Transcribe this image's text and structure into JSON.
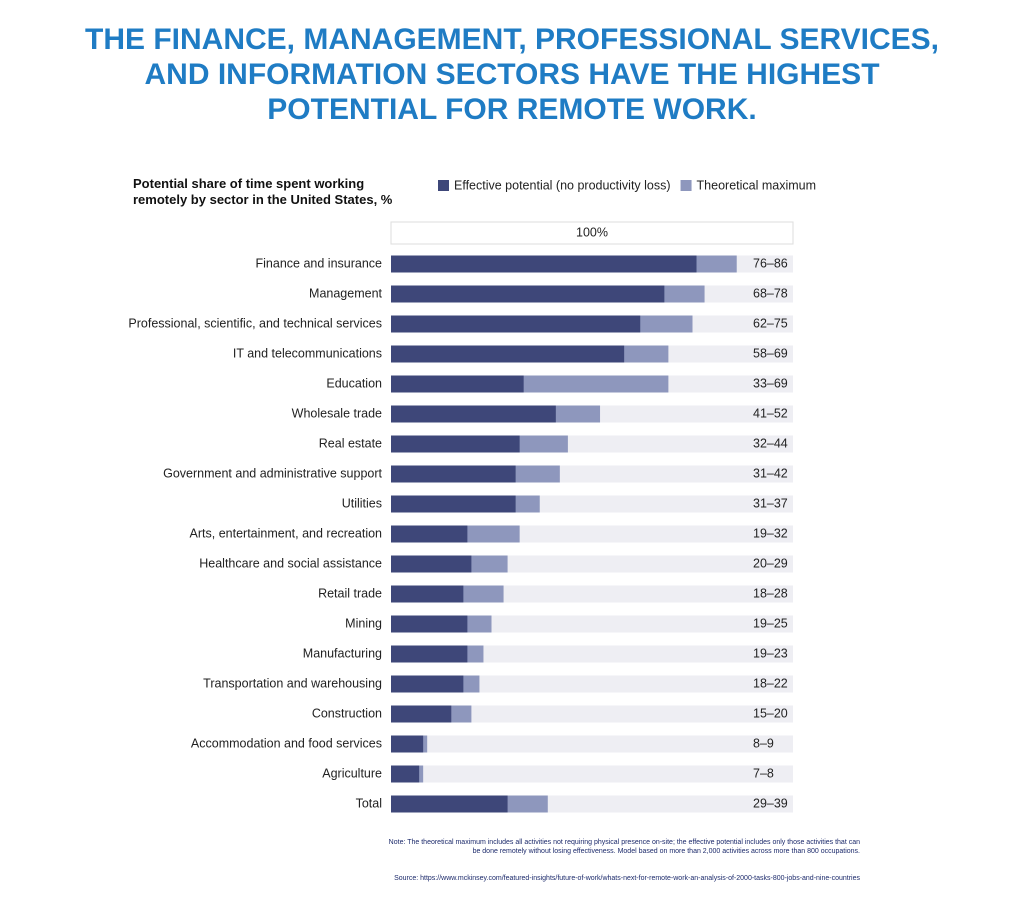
{
  "chart_data": {
    "type": "bar",
    "title": "THE FINANCE, MANAGEMENT, PROFESSIONAL SERVICES, AND INFORMATION SECTORS HAVE THE HIGHEST POTENTIAL FOR REMOTE WORK.",
    "subtitle": "Potential share of time spent working remotely by sector in the United States, %",
    "categories": [
      "Finance and insurance",
      "Management",
      "Professional, scientific, and technical services",
      "IT and telecommunications",
      "Education",
      "Wholesale trade",
      "Real estate",
      "Government and administrative support",
      "Utilities",
      "Arts, entertainment, and recreation",
      "Healthcare and social assistance",
      "Retail trade",
      "Mining",
      "Manufacturing",
      "Transportation and warehousing",
      "Construction",
      "Accommodation and food services",
      "Agriculture",
      "Total"
    ],
    "series": [
      {
        "name": "Effective potential (no productivity loss)",
        "color": "#3e4779",
        "values": [
          76,
          68,
          62,
          58,
          33,
          41,
          32,
          31,
          31,
          19,
          20,
          18,
          19,
          19,
          18,
          15,
          8,
          7,
          29
        ]
      },
      {
        "name": "Theoretical maximum",
        "color": "#8e97bd",
        "values": [
          86,
          78,
          75,
          69,
          69,
          52,
          44,
          42,
          37,
          32,
          29,
          28,
          25,
          23,
          22,
          20,
          9,
          8,
          39
        ]
      }
    ],
    "value_labels": [
      "76–86",
      "68–78",
      "62–75",
      "58–69",
      "33–69",
      "41–52",
      "32–44",
      "31–42",
      "31–37",
      "19–32",
      "20–29",
      "18–28",
      "19–25",
      "19–23",
      "18–22",
      "15–20",
      "8–9",
      "7–8",
      "29–39"
    ],
    "xlim": [
      0,
      100
    ],
    "xticks": [
      {
        "value": 100,
        "label": "100%"
      }
    ],
    "note": "Note: The theoretical maximum includes all activities not requiring physical presence on-site; the effective potential includes only those activities that can be done remotely without losing effectiveness. Model based on more than 2,000 activities across more than 800 occupations.",
    "source": "Source: https://www.mckinsey.com/featured-insights/future-of-work/whats-next-for-remote-work-an-analysis-of-2000-tasks-800-jobs-and-nine-countries"
  }
}
